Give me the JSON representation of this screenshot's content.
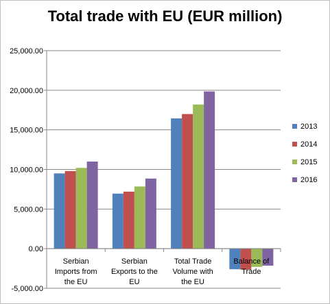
{
  "chart_data": {
    "type": "bar",
    "title": "Total trade with EU (EUR million)",
    "categories": [
      [
        "Serbian",
        "Imports from",
        "the EU"
      ],
      [
        "Serbian",
        "Exports to the",
        "EU"
      ],
      [
        "Total Trade",
        "Volume with",
        "the EU"
      ],
      [
        "Balance of",
        "Trade"
      ]
    ],
    "series": [
      {
        "name": "2013",
        "color": "#4f81bd",
        "values": [
          9500,
          6950,
          16450,
          -2600
        ]
      },
      {
        "name": "2014",
        "color": "#c0504d",
        "values": [
          9800,
          7200,
          17000,
          -2650
        ]
      },
      {
        "name": "2015",
        "color": "#9bbb59",
        "values": [
          10200,
          7850,
          18200,
          -2300
        ]
      },
      {
        "name": "2016",
        "color": "#8064a2",
        "values": [
          11000,
          8850,
          19850,
          -2150
        ]
      }
    ],
    "ylim": [
      -5000,
      25000
    ],
    "yticks": [
      "25,000.00",
      "20,000.00",
      "15,000.00",
      "10,000.00",
      "5,000.00",
      "0.00",
      "-5,000.00"
    ],
    "grid": true,
    "legend_position": "right"
  }
}
